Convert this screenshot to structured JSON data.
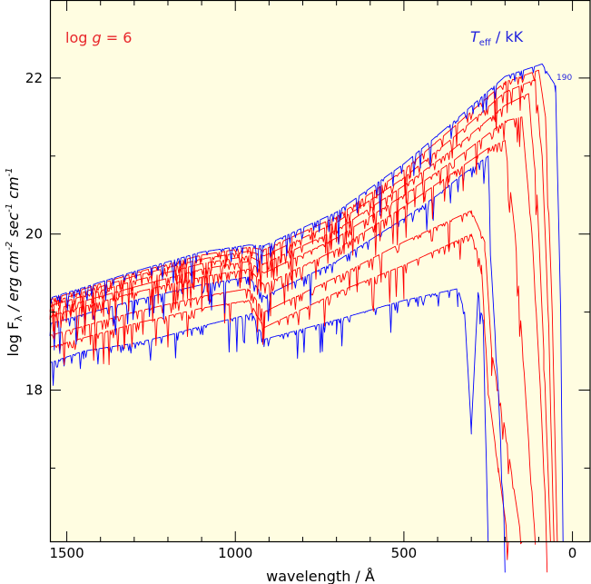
{
  "chart_data": {
    "type": "line",
    "title": "",
    "xlabel": "wavelength / Å",
    "ylabel_parts": [
      "log F",
      "λ",
      "/ erg cm",
      "-2",
      "sec",
      "-1",
      "cm",
      "-1"
    ],
    "xlim": [
      1550,
      -55
    ],
    "ylim": [
      16.05,
      23.0
    ],
    "x_reversed": true,
    "x_ticks": [
      1500,
      1000,
      500,
      0
    ],
    "y_ticks": [
      18,
      20,
      22
    ],
    "annotation_left": {
      "prefix": "log ",
      "g": "g",
      "suffix": " = 6"
    },
    "annotation_right": {
      "T": "T",
      "sub": "eff",
      "suffix": " / kK"
    },
    "peak_label": "190",
    "colors": {
      "background": "#fffde1",
      "red": "#ff0000",
      "blue": "#0000ff"
    },
    "series": [
      {
        "color": "blue",
        "points": [
          [
            1550,
            18.35
          ],
          [
            1450,
            18.5
          ],
          [
            1300,
            18.6
          ],
          [
            1200,
            18.7
          ],
          [
            1100,
            18.82
          ],
          [
            950,
            18.98
          ],
          [
            915,
            18.65
          ],
          [
            700,
            18.9
          ],
          [
            500,
            19.15
          ],
          [
            340,
            19.3
          ],
          [
            320,
            19.0
          ],
          [
            300,
            17.5
          ],
          [
            280,
            19.25
          ],
          [
            265,
            18.9
          ],
          [
            250,
            16.05
          ]
        ]
      },
      {
        "color": "red",
        "points": [
          [
            1550,
            18.55
          ],
          [
            1300,
            18.85
          ],
          [
            1100,
            19.05
          ],
          [
            960,
            19.15
          ],
          [
            915,
            18.8
          ],
          [
            700,
            19.25
          ],
          [
            500,
            19.6
          ],
          [
            350,
            19.9
          ],
          [
            300,
            20.0
          ],
          [
            270,
            19.6
          ],
          [
            250,
            18.0
          ],
          [
            220,
            17.0
          ],
          [
            190,
            16.05
          ]
        ]
      },
      {
        "color": "red",
        "points": [
          [
            1550,
            18.7
          ],
          [
            1300,
            19.0
          ],
          [
            1100,
            19.2
          ],
          [
            960,
            19.3
          ],
          [
            915,
            19.0
          ],
          [
            700,
            19.45
          ],
          [
            500,
            19.9
          ],
          [
            350,
            20.2
          ],
          [
            300,
            20.3
          ],
          [
            260,
            19.9
          ],
          [
            240,
            18.5
          ],
          [
            200,
            17.5
          ],
          [
            150,
            16.05
          ]
        ]
      },
      {
        "color": "blue",
        "points": [
          [
            1550,
            18.85
          ],
          [
            1300,
            19.15
          ],
          [
            1100,
            19.35
          ],
          [
            960,
            19.45
          ],
          [
            915,
            19.2
          ],
          [
            700,
            19.65
          ],
          [
            500,
            20.2
          ],
          [
            400,
            20.5
          ],
          [
            330,
            20.75
          ],
          [
            250,
            21.0
          ],
          [
            240,
            19.5
          ],
          [
            220,
            18.0
          ],
          [
            200,
            16.05
          ]
        ]
      },
      {
        "color": "red",
        "points": [
          [
            1550,
            18.95
          ],
          [
            1300,
            19.25
          ],
          [
            1100,
            19.45
          ],
          [
            960,
            19.55
          ],
          [
            915,
            19.35
          ],
          [
            700,
            19.8
          ],
          [
            500,
            20.35
          ],
          [
            350,
            20.8
          ],
          [
            250,
            21.1
          ],
          [
            200,
            21.2
          ],
          [
            170,
            20.0
          ],
          [
            140,
            18.0
          ],
          [
            110,
            16.05
          ]
        ]
      },
      {
        "color": "red",
        "points": [
          [
            1550,
            19.02
          ],
          [
            1300,
            19.32
          ],
          [
            1100,
            19.55
          ],
          [
            960,
            19.65
          ],
          [
            915,
            19.5
          ],
          [
            700,
            19.95
          ],
          [
            500,
            20.5
          ],
          [
            350,
            20.95
          ],
          [
            200,
            21.45
          ],
          [
            150,
            21.5
          ],
          [
            120,
            20.0
          ],
          [
            95,
            18.0
          ],
          [
            75,
            16.05
          ]
        ]
      },
      {
        "color": "red",
        "points": [
          [
            1550,
            19.08
          ],
          [
            1300,
            19.4
          ],
          [
            1100,
            19.62
          ],
          [
            960,
            19.72
          ],
          [
            915,
            19.62
          ],
          [
            700,
            20.05
          ],
          [
            500,
            20.62
          ],
          [
            350,
            21.1
          ],
          [
            200,
            21.65
          ],
          [
            130,
            21.8
          ],
          [
            105,
            20.5
          ],
          [
            85,
            18.5
          ],
          [
            65,
            16.05
          ]
        ]
      },
      {
        "color": "red",
        "points": [
          [
            1550,
            19.12
          ],
          [
            1300,
            19.46
          ],
          [
            1100,
            19.68
          ],
          [
            960,
            19.78
          ],
          [
            915,
            19.72
          ],
          [
            700,
            20.15
          ],
          [
            500,
            20.72
          ],
          [
            350,
            21.25
          ],
          [
            200,
            21.82
          ],
          [
            110,
            21.98
          ],
          [
            90,
            21.0
          ],
          [
            70,
            18.8
          ],
          [
            55,
            16.05
          ]
        ]
      },
      {
        "color": "red",
        "points": [
          [
            1550,
            19.16
          ],
          [
            1300,
            19.5
          ],
          [
            1100,
            19.73
          ],
          [
            960,
            19.83
          ],
          [
            915,
            19.8
          ],
          [
            700,
            20.22
          ],
          [
            500,
            20.82
          ],
          [
            350,
            21.38
          ],
          [
            200,
            21.95
          ],
          [
            100,
            22.1
          ],
          [
            80,
            21.5
          ],
          [
            60,
            19.0
          ],
          [
            45,
            16.05
          ]
        ]
      },
      {
        "color": "blue",
        "points": [
          [
            1550,
            19.18
          ],
          [
            1300,
            19.52
          ],
          [
            1100,
            19.77
          ],
          [
            960,
            19.86
          ],
          [
            915,
            19.85
          ],
          [
            700,
            20.28
          ],
          [
            500,
            20.9
          ],
          [
            350,
            21.45
          ],
          [
            200,
            22.02
          ],
          [
            90,
            22.18
          ],
          [
            50,
            21.9
          ],
          [
            35,
            19.0
          ],
          [
            28,
            16.05
          ]
        ]
      }
    ]
  }
}
